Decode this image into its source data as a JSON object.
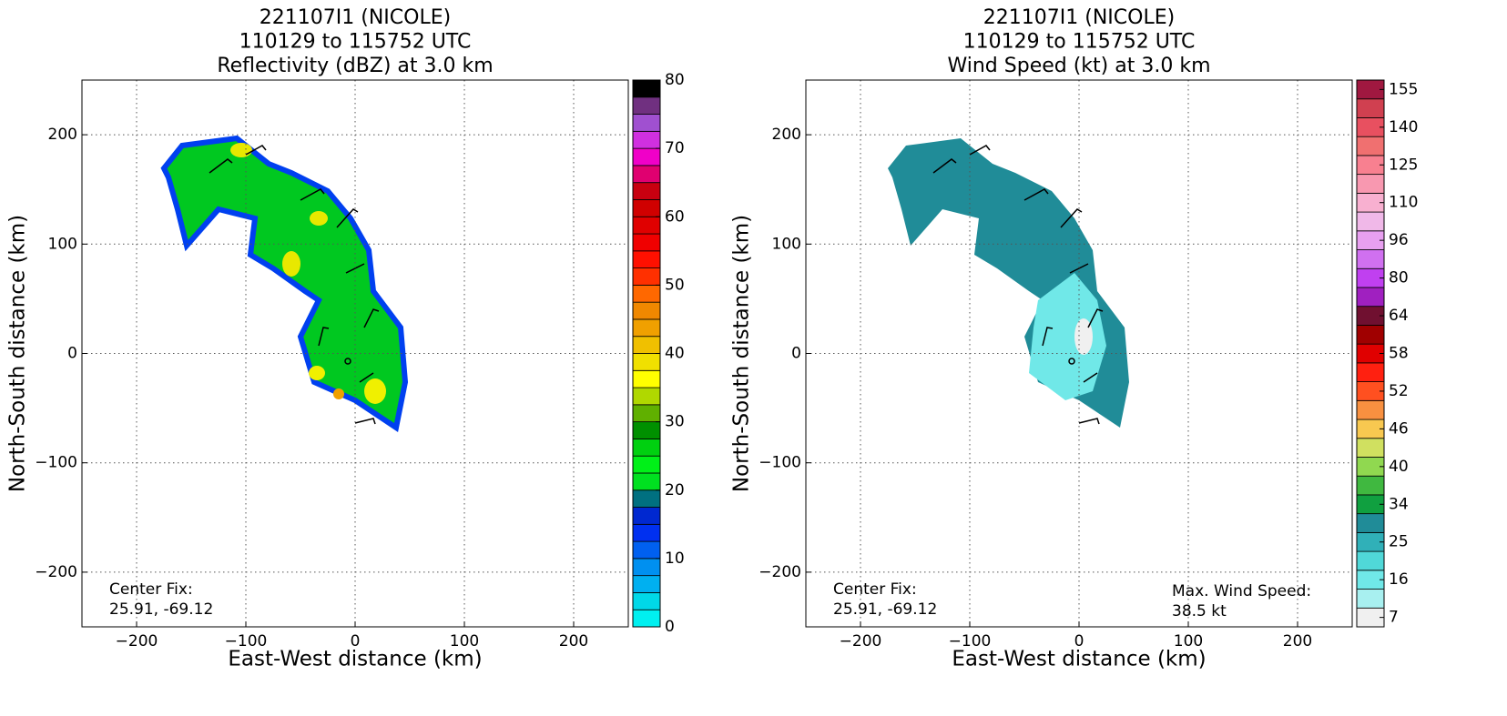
{
  "chart_data": [
    {
      "type": "heatmap",
      "title": [
        "221107I1 (NICOLE)",
        "110129 to 115752 UTC",
        "Reflectivity (dBZ) at 3.0 km"
      ],
      "xlabel": "East-West distance (km)",
      "ylabel": "North-South distance (km)",
      "xlim": [
        -250,
        250
      ],
      "ylim": [
        -250,
        250
      ],
      "xticks": [
        {
          "value": -200,
          "label": "−200"
        },
        {
          "value": -100,
          "label": "−100"
        },
        0,
        100,
        200
      ],
      "yticks": [
        {
          "value": -200,
          "label": "−200"
        },
        {
          "value": -100,
          "label": "−100"
        },
        0,
        100,
        200
      ],
      "grid": true,
      "annotations": [
        "Center Fix:",
        "25.91, -69.12"
      ],
      "colorbar": {
        "clim": [
          0,
          80
        ],
        "ticks": [
          0,
          10,
          20,
          30,
          40,
          50,
          60,
          70,
          80
        ],
        "colors": [
          "#00f0f0",
          "#00d8e8",
          "#00b0f0",
          "#0090f0",
          "#0060f0",
          "#0030f0",
          "#0028d0",
          "#007080",
          "#00e020",
          "#00f018",
          "#00d010",
          "#009000",
          "#60b000",
          "#b0d800",
          "#ffff00",
          "#f0e000",
          "#f0c000",
          "#f0a000",
          "#f08800",
          "#ff6800",
          "#ff3000",
          "#ff1000",
          "#f00000",
          "#e00000",
          "#d00000",
          "#c80010",
          "#e00070",
          "#f000c8",
          "#d030e0",
          "#a050d0",
          "#703080",
          "#000000"
        ]
      }
    },
    {
      "type": "heatmap",
      "title": [
        "221107I1 (NICOLE)",
        "110129 to 115752 UTC",
        "Wind Speed (kt) at 3.0 km"
      ],
      "xlabel": "East-West distance (km)",
      "ylabel": "North-South distance (km)",
      "xlim": [
        -250,
        250
      ],
      "ylim": [
        -250,
        250
      ],
      "xticks": [
        {
          "value": -200,
          "label": "−200"
        },
        {
          "value": -100,
          "label": "−100"
        },
        0,
        100,
        200
      ],
      "yticks": [
        {
          "value": -200,
          "label": "−200"
        },
        {
          "value": -100,
          "label": "−100"
        },
        0,
        100,
        200
      ],
      "grid": true,
      "annotations": [
        "Center Fix:",
        "25.91, -69.12",
        "Max. Wind Speed:",
        "38.5 kt"
      ],
      "colorbar": {
        "ticks": [
          7,
          16,
          25,
          34,
          40,
          46,
          52,
          58,
          64,
          80,
          96,
          110,
          125,
          140,
          155
        ],
        "colors": [
          "#f0f0f0",
          "#a8f0f0",
          "#70e8e8",
          "#50d8d8",
          "#30b0b8",
          "#208c98",
          "#10a040",
          "#40b840",
          "#90d850",
          "#d0e060",
          "#f8c850",
          "#f89040",
          "#ff5020",
          "#ff2010",
          "#e00000",
          "#a00000",
          "#701030",
          "#a020c0",
          "#c040f0",
          "#d070f0",
          "#e8a0f0",
          "#f0b8e8",
          "#f8b0d0",
          "#f898b0",
          "#f88090",
          "#f07070",
          "#e85060",
          "#d04050",
          "#a01840"
        ]
      }
    }
  ]
}
